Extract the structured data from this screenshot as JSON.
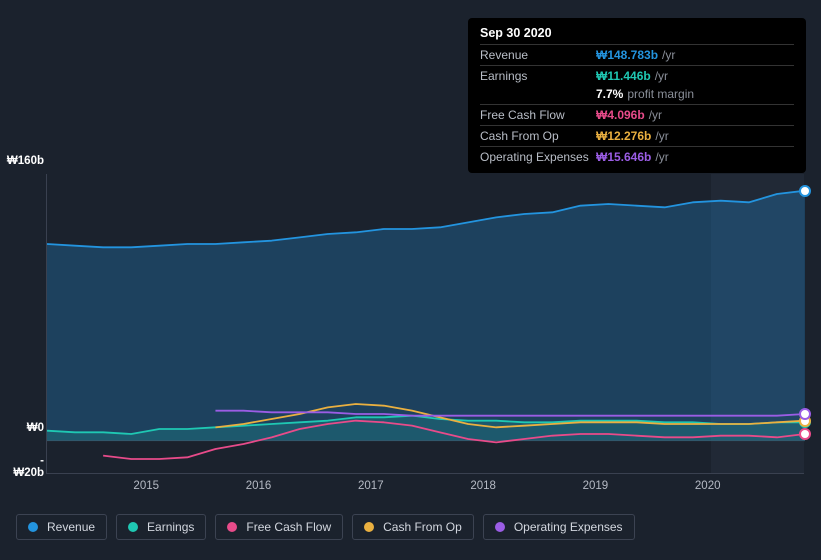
{
  "tooltip": {
    "date": "Sep 30 2020",
    "rows": [
      {
        "label": "Revenue",
        "value": "₩148.783b",
        "suffix": "/yr",
        "color": "#2394df"
      },
      {
        "label": "Earnings",
        "value": "₩11.446b",
        "suffix": "/yr",
        "color": "#1fc8b3",
        "sub_pct": "7.7%",
        "sub_text": "profit margin"
      },
      {
        "label": "Free Cash Flow",
        "value": "₩4.096b",
        "suffix": "/yr",
        "color": "#e84b8a"
      },
      {
        "label": "Cash From Op",
        "value": "₩12.276b",
        "suffix": "/yr",
        "color": "#eab040"
      },
      {
        "label": "Operating Expenses",
        "value": "₩15.646b",
        "suffix": "/yr",
        "color": "#9b5de5"
      }
    ]
  },
  "chart": {
    "type": "line-area",
    "background": "#1b222d",
    "grid_color": "#3a4150",
    "y_axis": {
      "min": -20,
      "max": 160,
      "ticks": [
        160,
        0,
        -20
      ],
      "tick_labels": [
        "₩160b",
        "₩0",
        "-₩20b"
      ]
    },
    "x_axis": {
      "min": 2014.25,
      "max": 2021.0,
      "tick_years": [
        2015,
        2016,
        2017,
        2018,
        2019,
        2020
      ]
    },
    "highlight_from": 2020.17,
    "series": [
      {
        "name": "Revenue",
        "color": "#2394df",
        "area": true,
        "area_opacity": 0.28,
        "points": [
          [
            2014.25,
            118
          ],
          [
            2014.5,
            117
          ],
          [
            2014.75,
            116
          ],
          [
            2015.0,
            116
          ],
          [
            2015.25,
            117
          ],
          [
            2015.5,
            118
          ],
          [
            2015.75,
            118
          ],
          [
            2016.0,
            119
          ],
          [
            2016.25,
            120
          ],
          [
            2016.5,
            122
          ],
          [
            2016.75,
            124
          ],
          [
            2017.0,
            125
          ],
          [
            2017.25,
            127
          ],
          [
            2017.5,
            127
          ],
          [
            2017.75,
            128
          ],
          [
            2018.0,
            131
          ],
          [
            2018.25,
            134
          ],
          [
            2018.5,
            136
          ],
          [
            2018.75,
            137
          ],
          [
            2019.0,
            141
          ],
          [
            2019.25,
            142
          ],
          [
            2019.5,
            141
          ],
          [
            2019.75,
            140
          ],
          [
            2020.0,
            143
          ],
          [
            2020.25,
            144
          ],
          [
            2020.5,
            143
          ],
          [
            2020.75,
            148
          ],
          [
            2021.0,
            150
          ]
        ]
      },
      {
        "name": "Earnings",
        "color": "#1fc8b3",
        "area": true,
        "area_opacity": 0.18,
        "points": [
          [
            2014.25,
            6
          ],
          [
            2014.5,
            5
          ],
          [
            2014.75,
            5
          ],
          [
            2015.0,
            4
          ],
          [
            2015.25,
            7
          ],
          [
            2015.5,
            7
          ],
          [
            2015.75,
            8
          ],
          [
            2016.0,
            9
          ],
          [
            2016.25,
            10
          ],
          [
            2016.5,
            11
          ],
          [
            2016.75,
            12
          ],
          [
            2017.0,
            14
          ],
          [
            2017.25,
            14
          ],
          [
            2017.5,
            15
          ],
          [
            2017.75,
            13
          ],
          [
            2018.0,
            12
          ],
          [
            2018.25,
            12
          ],
          [
            2018.5,
            11
          ],
          [
            2018.75,
            11
          ],
          [
            2019.0,
            12
          ],
          [
            2019.25,
            12
          ],
          [
            2019.5,
            12
          ],
          [
            2019.75,
            11
          ],
          [
            2020.0,
            11
          ],
          [
            2020.25,
            10
          ],
          [
            2020.5,
            10
          ],
          [
            2020.75,
            11
          ],
          [
            2021.0,
            11
          ]
        ]
      },
      {
        "name": "Free Cash Flow",
        "color": "#e84b8a",
        "area": false,
        "points": [
          [
            2014.75,
            -9
          ],
          [
            2015.0,
            -11
          ],
          [
            2015.25,
            -11
          ],
          [
            2015.5,
            -10
          ],
          [
            2015.75,
            -5
          ],
          [
            2016.0,
            -2
          ],
          [
            2016.25,
            2
          ],
          [
            2016.5,
            7
          ],
          [
            2016.75,
            10
          ],
          [
            2017.0,
            12
          ],
          [
            2017.25,
            11
          ],
          [
            2017.5,
            9
          ],
          [
            2017.75,
            5
          ],
          [
            2018.0,
            1
          ],
          [
            2018.25,
            -1
          ],
          [
            2018.5,
            1
          ],
          [
            2018.75,
            3
          ],
          [
            2019.0,
            4
          ],
          [
            2019.25,
            4
          ],
          [
            2019.5,
            3
          ],
          [
            2019.75,
            2
          ],
          [
            2020.0,
            2
          ],
          [
            2020.25,
            3
          ],
          [
            2020.5,
            3
          ],
          [
            2020.75,
            2
          ],
          [
            2021.0,
            4
          ]
        ]
      },
      {
        "name": "Cash From Op",
        "color": "#eab040",
        "area": false,
        "points": [
          [
            2015.75,
            8
          ],
          [
            2016.0,
            10
          ],
          [
            2016.25,
            13
          ],
          [
            2016.5,
            16
          ],
          [
            2016.75,
            20
          ],
          [
            2017.0,
            22
          ],
          [
            2017.25,
            21
          ],
          [
            2017.5,
            18
          ],
          [
            2017.75,
            14
          ],
          [
            2018.0,
            10
          ],
          [
            2018.25,
            8
          ],
          [
            2018.5,
            9
          ],
          [
            2018.75,
            10
          ],
          [
            2019.0,
            11
          ],
          [
            2019.25,
            11
          ],
          [
            2019.5,
            11
          ],
          [
            2019.75,
            10
          ],
          [
            2020.0,
            10
          ],
          [
            2020.25,
            10
          ],
          [
            2020.5,
            10
          ],
          [
            2020.75,
            11
          ],
          [
            2021.0,
            12
          ]
        ]
      },
      {
        "name": "Operating Expenses",
        "color": "#9b5de5",
        "area": false,
        "points": [
          [
            2015.75,
            18
          ],
          [
            2016.0,
            18
          ],
          [
            2016.25,
            17
          ],
          [
            2016.5,
            17
          ],
          [
            2016.75,
            17
          ],
          [
            2017.0,
            16
          ],
          [
            2017.25,
            16
          ],
          [
            2017.5,
            15
          ],
          [
            2017.75,
            15
          ],
          [
            2018.0,
            15
          ],
          [
            2018.25,
            15
          ],
          [
            2018.5,
            15
          ],
          [
            2018.75,
            15
          ],
          [
            2019.0,
            15
          ],
          [
            2019.25,
            15
          ],
          [
            2019.5,
            15
          ],
          [
            2019.75,
            15
          ],
          [
            2020.0,
            15
          ],
          [
            2020.25,
            15
          ],
          [
            2020.5,
            15
          ],
          [
            2020.75,
            15
          ],
          [
            2021.0,
            16
          ]
        ]
      }
    ],
    "end_markers": true
  },
  "legend": {
    "items": [
      {
        "label": "Revenue",
        "color": "#2394df"
      },
      {
        "label": "Earnings",
        "color": "#1fc8b3"
      },
      {
        "label": "Free Cash Flow",
        "color": "#e84b8a"
      },
      {
        "label": "Cash From Op",
        "color": "#eab040"
      },
      {
        "label": "Operating Expenses",
        "color": "#9b5de5"
      }
    ]
  }
}
